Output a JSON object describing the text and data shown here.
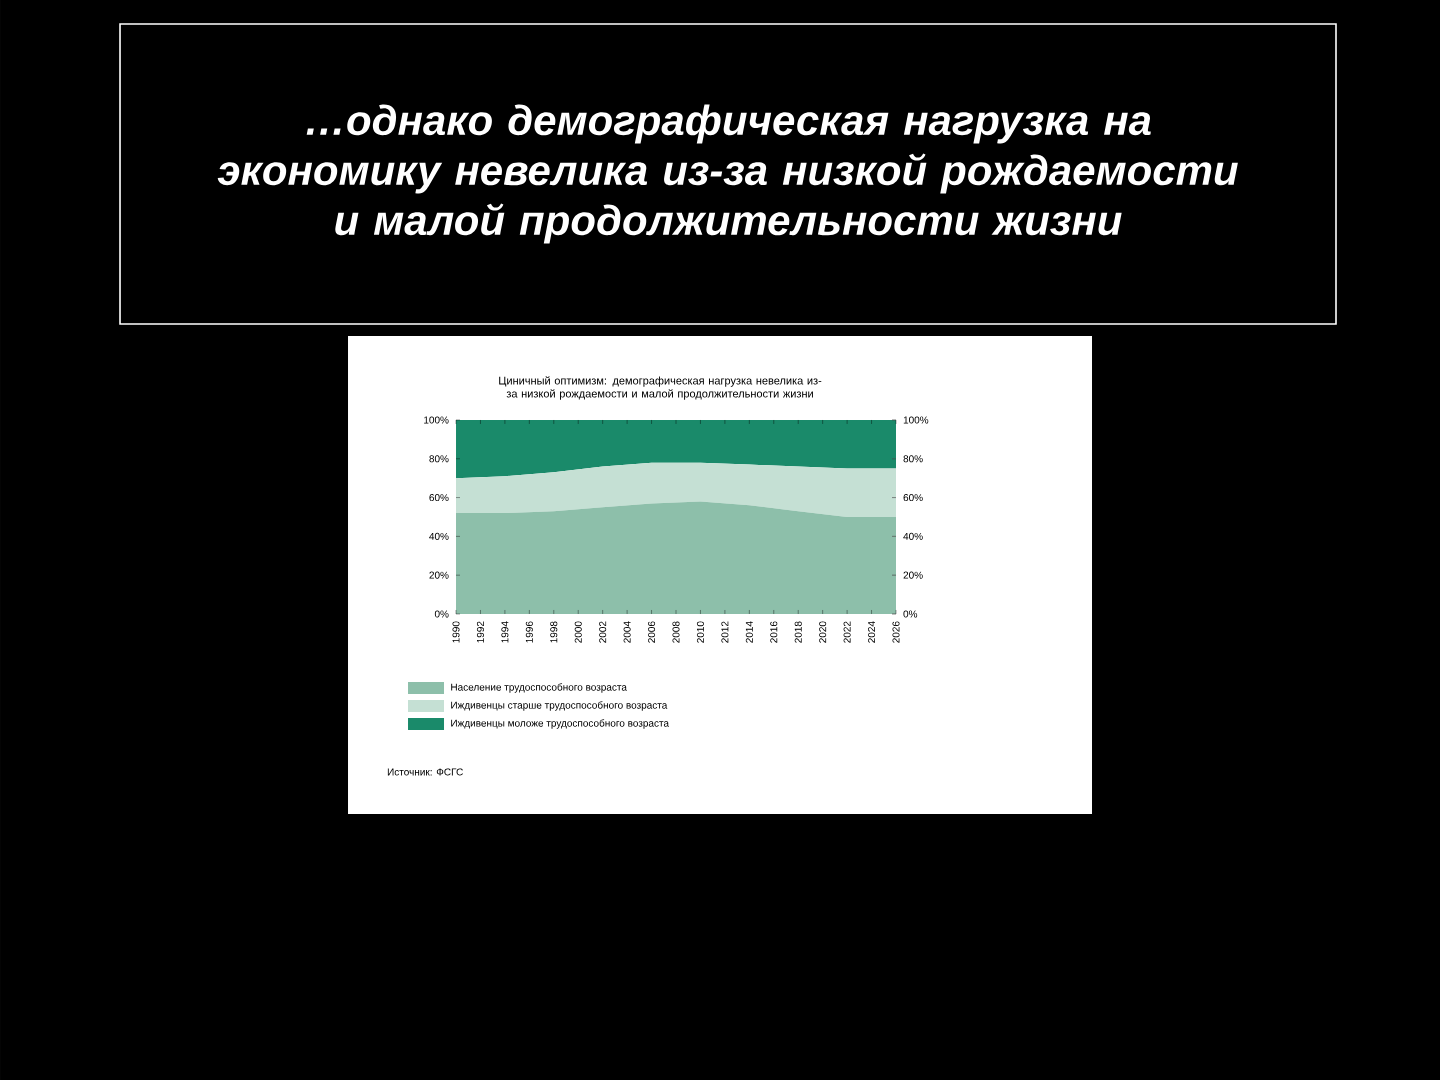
{
  "chart_data": {
    "type": "area",
    "stacked": true,
    "title": "…однако демографическая нагрузка на экономику невелика из-за низкой рождаемости и малой продолжительности жизни",
    "subtitle": "Циничный оптимизм: демографическая нагрузка невелика из-за низкой рождаемости и малой продолжительности жизни",
    "x": [
      1990,
      1994,
      1998,
      2002,
      2006,
      2010,
      2014,
      2018,
      2022,
      2026
    ],
    "series": [
      {
        "name": "Население трудоспособного возраста",
        "color": "#8dbfaa",
        "values": [
          52,
          52,
          53,
          55,
          57,
          58,
          56,
          53,
          50,
          50
        ]
      },
      {
        "name": "Иждивенцы старше трудоспособного возраста",
        "color": "#c5e0d4",
        "values": [
          18,
          19,
          20,
          21,
          21,
          20,
          21,
          23,
          25,
          25
        ]
      },
      {
        "name": "Иждивенцы моложе трудоспособного возраста",
        "color": "#1a8a6a",
        "values": [
          30,
          29,
          27,
          24,
          22,
          22,
          23,
          24,
          25,
          25
        ]
      }
    ],
    "xlim": [
      1990,
      2026
    ],
    "xticks": [
      1990,
      1992,
      1994,
      1996,
      1998,
      2000,
      2002,
      2004,
      2006,
      2008,
      2010,
      2012,
      2014,
      2016,
      2018,
      2020,
      2022,
      2024,
      2026
    ],
    "ylim": [
      0,
      100
    ],
    "yticks": [
      {
        "value": 0,
        "label": "0%"
      },
      {
        "value": 20,
        "label": "20%"
      },
      {
        "value": 40,
        "label": "40%"
      },
      {
        "value": 60,
        "label": "60%"
      },
      {
        "value": 80,
        "label": "80%"
      },
      {
        "value": 100,
        "label": "100%"
      }
    ],
    "y2lim": [
      0,
      100
    ],
    "y2ticks": [
      {
        "value": 0,
        "label": "0%"
      },
      {
        "value": 20,
        "label": "20%"
      },
      {
        "value": 40,
        "label": "40%"
      },
      {
        "value": 60,
        "label": "60%"
      },
      {
        "value": 80,
        "label": "80%"
      },
      {
        "value": 100,
        "label": "100%"
      }
    ],
    "legend": "bottom",
    "annotations": [
      "Источник: ФСГС"
    ]
  }
}
